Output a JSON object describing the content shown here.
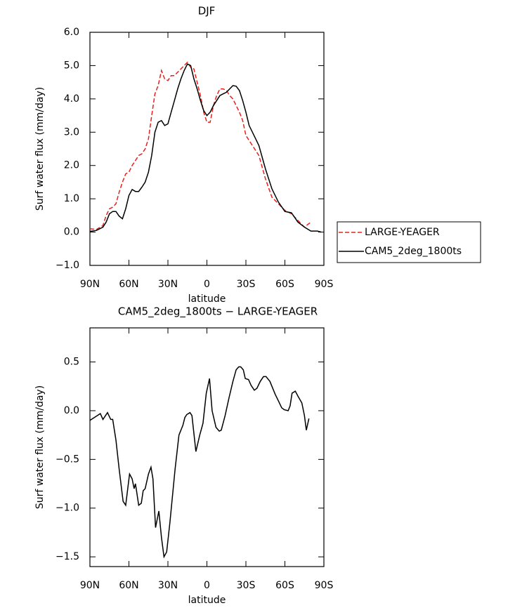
{
  "chart_data": [
    {
      "type": "line",
      "title": "DJF",
      "xlabel": "latitude",
      "ylabel": "Surf water flux (mm/day)",
      "x": [
        90,
        85,
        80,
        77.5,
        75,
        72.5,
        70,
        67.5,
        65,
        62.5,
        60,
        57.5,
        55,
        52.5,
        50,
        47.5,
        45,
        42.5,
        40,
        37.5,
        35,
        32.5,
        30,
        27.5,
        25,
        22.5,
        20,
        17.5,
        15,
        12.5,
        10,
        7.5,
        5,
        2.5,
        0,
        -2.5,
        -5,
        -7.5,
        -10,
        -12.5,
        -15,
        -17.5,
        -20,
        -22.5,
        -25,
        -27.5,
        -30,
        -32.5,
        -35,
        -40,
        -45,
        -50,
        -55,
        -60,
        -65,
        -70,
        -75,
        -80,
        -85,
        -88
      ],
      "series": [
        {
          "name": "LARGE-YEAGER",
          "color": "#e8201e",
          "line_style": "dashed",
          "values": [
            0.1,
            0.08,
            0.2,
            0.5,
            0.7,
            0.75,
            0.85,
            1.2,
            1.5,
            1.75,
            1.8,
            2.0,
            2.15,
            2.3,
            2.35,
            2.5,
            2.8,
            3.5,
            4.15,
            4.4,
            4.85,
            4.6,
            4.55,
            4.7,
            4.7,
            4.8,
            4.9,
            5.0,
            5.1,
            4.95,
            4.9,
            4.5,
            4.1,
            3.6,
            3.3,
            3.3,
            3.8,
            4.1,
            4.3,
            4.3,
            4.25,
            4.1,
            4.0,
            3.8,
            3.6,
            3.35,
            2.9,
            2.75,
            2.6,
            2.3,
            1.6,
            1.05,
            0.85,
            0.65,
            0.55,
            0.35,
            0.15,
            0.3,
            null,
            null
          ]
        },
        {
          "name": "CAM5_2deg_1800ts",
          "color": "#000000",
          "line_style": "solid",
          "values": [
            0.02,
            0.05,
            0.15,
            0.3,
            0.55,
            0.62,
            0.62,
            0.48,
            0.4,
            0.7,
            1.1,
            1.28,
            1.22,
            1.22,
            1.35,
            1.5,
            1.8,
            2.3,
            3.0,
            3.3,
            3.35,
            3.2,
            3.25,
            3.6,
            3.95,
            4.3,
            4.6,
            4.85,
            5.05,
            5.0,
            4.6,
            4.3,
            3.95,
            3.65,
            3.5,
            3.6,
            3.8,
            3.95,
            4.1,
            4.15,
            4.2,
            4.3,
            4.4,
            4.38,
            4.25,
            3.95,
            3.6,
            3.2,
            3.0,
            2.6,
            1.9,
            1.3,
            0.9,
            0.62,
            0.58,
            0.3,
            0.15,
            0.03,
            0.03,
            0.0
          ]
        }
      ],
      "xlim": [
        90,
        -90
      ],
      "xticks": [
        {
          "value": 90,
          "label": "90N"
        },
        {
          "value": 60,
          "label": "60N"
        },
        {
          "value": 30,
          "label": "30N"
        },
        0,
        {
          "value": -30,
          "label": "30S"
        },
        {
          "value": -60,
          "label": "60S"
        },
        {
          "value": -90,
          "label": "90S"
        }
      ],
      "ylim": [
        -1,
        6
      ],
      "yticks": [
        {
          "value": -1,
          "label": "−1.0"
        },
        {
          "value": 0,
          "label": "0.0"
        },
        {
          "value": 1,
          "label": "1.0"
        },
        {
          "value": 2,
          "label": "2.0"
        },
        {
          "value": 3,
          "label": "3.0"
        },
        {
          "value": 4,
          "label": "4.0"
        },
        {
          "value": 5,
          "label": "5.0"
        },
        {
          "value": 6,
          "label": "6.0"
        }
      ],
      "legend": "outside-right"
    },
    {
      "type": "line",
      "title": "CAM5_2deg_1800ts − LARGE-YEAGER",
      "xlabel": "latitude",
      "ylabel": "Surf water flux (mm/day)",
      "x": [
        90,
        82,
        80,
        76.5,
        74,
        72.5,
        70,
        67.5,
        64.5,
        62.5,
        59.5,
        57.5,
        56,
        55,
        52.5,
        50.5,
        49,
        47.5,
        45,
        43,
        41.5,
        39.5,
        37,
        35,
        33,
        31,
        28.5,
        24.5,
        21.5,
        18.5,
        17,
        15.5,
        13,
        11.5,
        8.5,
        5.5,
        3,
        0.5,
        -2,
        -4,
        -7,
        -9.5,
        -11,
        -14,
        -17,
        -20,
        -22.5,
        -24.5,
        -26,
        -28,
        -29.5,
        -32,
        -34,
        -36.5,
        -38.5,
        -41,
        -43.5,
        -45.5,
        -48.5,
        -52.5,
        -55,
        -57.5,
        -59.5,
        -62.5,
        -64,
        -65.5,
        -68,
        -70,
        -73,
        -75,
        -76.5,
        -78.5
      ],
      "values": [
        -0.1,
        -0.03,
        -0.09,
        -0.02,
        -0.09,
        -0.09,
        -0.3,
        -0.6,
        -0.93,
        -0.97,
        -0.65,
        -0.7,
        -0.8,
        -0.75,
        -0.97,
        -0.95,
        -0.82,
        -0.8,
        -0.65,
        -0.58,
        -0.7,
        -1.2,
        -1.03,
        -1.3,
        -1.5,
        -1.45,
        -1.15,
        -0.6,
        -0.25,
        -0.15,
        -0.07,
        -0.04,
        -0.02,
        -0.05,
        -0.42,
        -0.25,
        -0.13,
        0.18,
        0.33,
        0.0,
        -0.17,
        -0.21,
        -0.2,
        -0.05,
        0.13,
        0.3,
        0.42,
        0.45,
        0.45,
        0.42,
        0.33,
        0.32,
        0.26,
        0.21,
        0.23,
        0.3,
        0.35,
        0.35,
        0.3,
        0.17,
        0.1,
        0.03,
        0.01,
        0.0,
        0.05,
        0.18,
        0.2,
        0.15,
        0.08,
        -0.05,
        -0.2,
        -0.08
      ],
      "color": "#000000",
      "line_style": "solid",
      "xlim": [
        90,
        -90
      ],
      "xticks": [
        {
          "value": 90,
          "label": "90N"
        },
        {
          "value": 60,
          "label": "60N"
        },
        {
          "value": 30,
          "label": "30N"
        },
        0,
        {
          "value": -30,
          "label": "30S"
        },
        {
          "value": -60,
          "label": "60S"
        },
        {
          "value": -90,
          "label": "90S"
        }
      ],
      "ylim": [
        -1.6,
        0.85
      ],
      "yticks": [
        {
          "value": -1.5,
          "label": "−1.5"
        },
        {
          "value": -1,
          "label": "−1.0"
        },
        {
          "value": -0.5,
          "label": "−0.5"
        },
        {
          "value": 0,
          "label": "0.0"
        },
        {
          "value": 0.5,
          "label": "0.5"
        }
      ]
    }
  ]
}
